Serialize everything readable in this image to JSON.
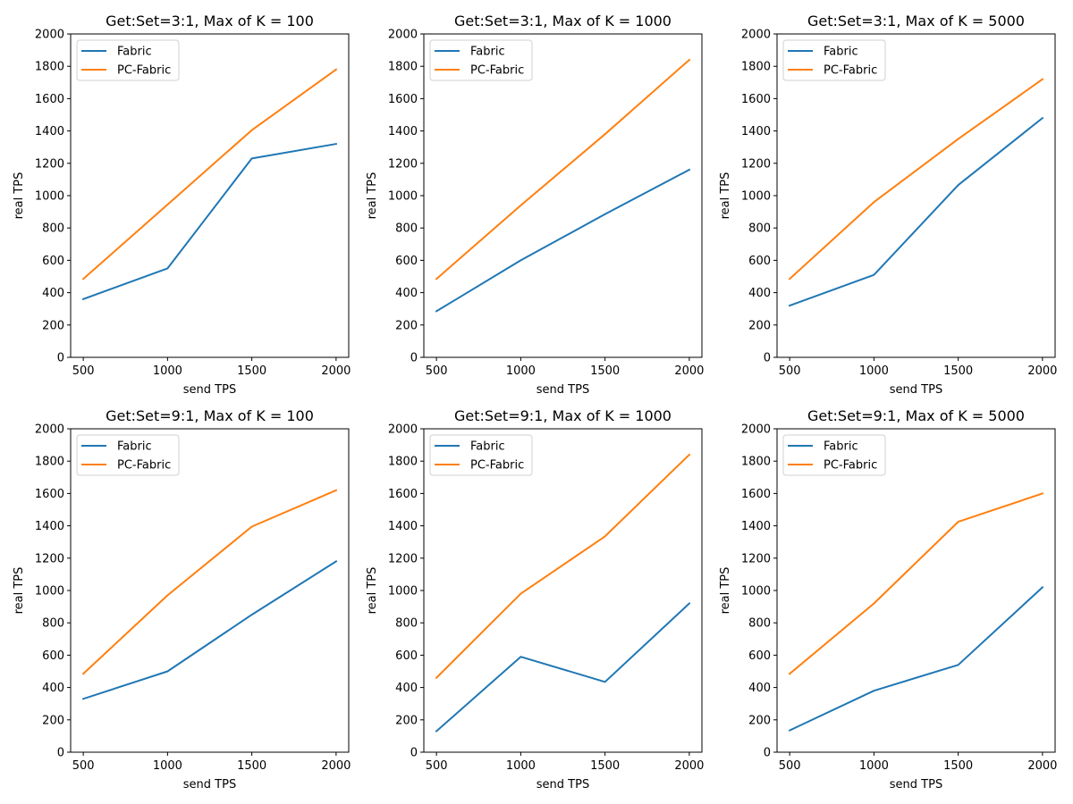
{
  "colors": {
    "fabric": "#1f77b4",
    "pc_fabric": "#ff7f0e"
  },
  "chart_data": [
    {
      "type": "line",
      "title": "Get:Set=3:1, Max of K = 100",
      "xlabel": "send TPS",
      "ylabel": "real TPS",
      "x": [
        500,
        1000,
        1500,
        2000
      ],
      "xticks": [
        500,
        1000,
        1500,
        2000
      ],
      "yticks": [
        0,
        200,
        400,
        600,
        800,
        1000,
        1200,
        1400,
        1600,
        1800,
        2000
      ],
      "xlim": [
        425,
        2075
      ],
      "ylim": [
        0,
        2000
      ],
      "grid": false,
      "legend_position": "top-left",
      "series": [
        {
          "name": "Fabric",
          "values": [
            360,
            550,
            1230,
            1320
          ]
        },
        {
          "name": "PC-Fabric",
          "values": [
            485,
            945,
            1405,
            1780
          ]
        }
      ]
    },
    {
      "type": "line",
      "title": "Get:Set=3:1, Max of K = 1000",
      "xlabel": "send TPS",
      "ylabel": "real TPS",
      "x": [
        500,
        1000,
        1500,
        2000
      ],
      "xticks": [
        500,
        1000,
        1500,
        2000
      ],
      "yticks": [
        0,
        200,
        400,
        600,
        800,
        1000,
        1200,
        1400,
        1600,
        1800,
        2000
      ],
      "xlim": [
        425,
        2075
      ],
      "ylim": [
        0,
        2000
      ],
      "grid": false,
      "legend_position": "top-left",
      "series": [
        {
          "name": "Fabric",
          "values": [
            285,
            600,
            885,
            1160
          ]
        },
        {
          "name": "PC-Fabric",
          "values": [
            485,
            940,
            1380,
            1840
          ]
        }
      ]
    },
    {
      "type": "line",
      "title": "Get:Set=3:1, Max of K = 5000",
      "xlabel": "send TPS",
      "ylabel": "real TPS",
      "x": [
        500,
        1000,
        1500,
        2000
      ],
      "xticks": [
        500,
        1000,
        1500,
        2000
      ],
      "yticks": [
        0,
        200,
        400,
        600,
        800,
        1000,
        1200,
        1400,
        1600,
        1800,
        2000
      ],
      "xlim": [
        425,
        2075
      ],
      "ylim": [
        0,
        2000
      ],
      "grid": false,
      "legend_position": "top-left",
      "series": [
        {
          "name": "Fabric",
          "values": [
            320,
            510,
            1065,
            1480
          ]
        },
        {
          "name": "PC-Fabric",
          "values": [
            485,
            960,
            1350,
            1720
          ]
        }
      ]
    },
    {
      "type": "line",
      "title": "Get:Set=9:1, Max of K = 100",
      "xlabel": "send TPS",
      "ylabel": "real TPS",
      "x": [
        500,
        1000,
        1500,
        2000
      ],
      "xticks": [
        500,
        1000,
        1500,
        2000
      ],
      "yticks": [
        0,
        200,
        400,
        600,
        800,
        1000,
        1200,
        1400,
        1600,
        1800,
        2000
      ],
      "xlim": [
        425,
        2075
      ],
      "ylim": [
        0,
        2000
      ],
      "grid": false,
      "legend_position": "top-left",
      "series": [
        {
          "name": "Fabric",
          "values": [
            330,
            500,
            850,
            1180
          ]
        },
        {
          "name": "PC-Fabric",
          "values": [
            485,
            970,
            1395,
            1620
          ]
        }
      ]
    },
    {
      "type": "line",
      "title": "Get:Set=9:1, Max of K = 1000",
      "xlabel": "send TPS",
      "ylabel": "real TPS",
      "x": [
        500,
        1000,
        1500,
        2000
      ],
      "xticks": [
        500,
        1000,
        1500,
        2000
      ],
      "yticks": [
        0,
        200,
        400,
        600,
        800,
        1000,
        1200,
        1400,
        1600,
        1800,
        2000
      ],
      "xlim": [
        425,
        2075
      ],
      "ylim": [
        0,
        2000
      ],
      "grid": false,
      "legend_position": "top-left",
      "series": [
        {
          "name": "Fabric",
          "values": [
            130,
            590,
            435,
            920
          ]
        },
        {
          "name": "PC-Fabric",
          "values": [
            460,
            980,
            1335,
            1840
          ]
        }
      ]
    },
    {
      "type": "line",
      "title": "Get:Set=9:1, Max of K = 5000",
      "xlabel": "send TPS",
      "ylabel": "real TPS",
      "x": [
        500,
        1000,
        1500,
        2000
      ],
      "xticks": [
        500,
        1000,
        1500,
        2000
      ],
      "yticks": [
        0,
        200,
        400,
        600,
        800,
        1000,
        1200,
        1400,
        1600,
        1800,
        2000
      ],
      "xlim": [
        425,
        2075
      ],
      "ylim": [
        0,
        2000
      ],
      "grid": false,
      "legend_position": "top-left",
      "series": [
        {
          "name": "Fabric",
          "values": [
            135,
            380,
            540,
            1020
          ]
        },
        {
          "name": "PC-Fabric",
          "values": [
            485,
            920,
            1425,
            1600
          ]
        }
      ]
    }
  ]
}
